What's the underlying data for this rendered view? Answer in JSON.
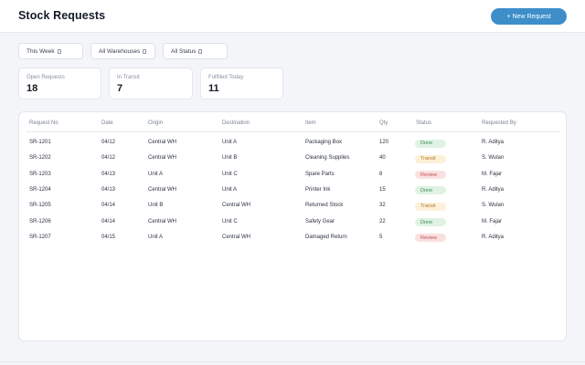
{
  "header": {
    "title": "Stock Requests",
    "new_button_label": "+ New Request"
  },
  "filters": [
    {
      "label": "This Week",
      "icon": "chevron-down-icon"
    },
    {
      "label": "All Warehouses",
      "icon": "chevron-down-icon"
    },
    {
      "label": "All Status",
      "icon": "chevron-down-icon"
    }
  ],
  "stats": [
    {
      "label": "Open Requests",
      "value": "18"
    },
    {
      "label": "In Transit",
      "value": "7"
    },
    {
      "label": "Fulfilled Today",
      "value": "11"
    }
  ],
  "table": {
    "columns": [
      "Request No",
      "Date",
      "Origin",
      "Destination",
      "Item",
      "Qty",
      "Status",
      "Requested By"
    ],
    "rows": [
      {
        "id": "SR-1201",
        "date": "04/12",
        "origin": "Central WH",
        "destination": "Unit A",
        "item": "Packaging Box",
        "qty": "120",
        "status": "Done",
        "by": "R. Aditya"
      },
      {
        "id": "SR-1202",
        "date": "04/12",
        "origin": "Central WH",
        "destination": "Unit B",
        "item": "Cleaning Supplies",
        "qty": "40",
        "status": "Transit",
        "by": "S. Wulan"
      },
      {
        "id": "SR-1203",
        "date": "04/13",
        "origin": "Unit A",
        "destination": "Unit C",
        "item": "Spare Parts",
        "qty": "8",
        "status": "Review",
        "by": "M. Fajar"
      },
      {
        "id": "SR-1204",
        "date": "04/13",
        "origin": "Central WH",
        "destination": "Unit A",
        "item": "Printer Ink",
        "qty": "15",
        "status": "Done",
        "by": "R. Aditya"
      },
      {
        "id": "SR-1205",
        "date": "04/14",
        "origin": "Unit B",
        "destination": "Central WH",
        "item": "Returned Stock",
        "qty": "32",
        "status": "Transit",
        "by": "S. Wulan"
      },
      {
        "id": "SR-1206",
        "date": "04/14",
        "origin": "Central WH",
        "destination": "Unit C",
        "item": "Safety Gear",
        "qty": "22",
        "status": "Done",
        "by": "M. Fajar"
      },
      {
        "id": "SR-1207",
        "date": "04/15",
        "origin": "Unit A",
        "destination": "Central WH",
        "item": "Damaged Return",
        "qty": "5",
        "status": "Review",
        "by": "R. Aditya"
      }
    ]
  },
  "colors": {
    "accent": "#3d8ec9",
    "done_bg": "#dff2e4",
    "transit_bg": "#fdf0d9",
    "review_bg": "#fbe0e0"
  }
}
